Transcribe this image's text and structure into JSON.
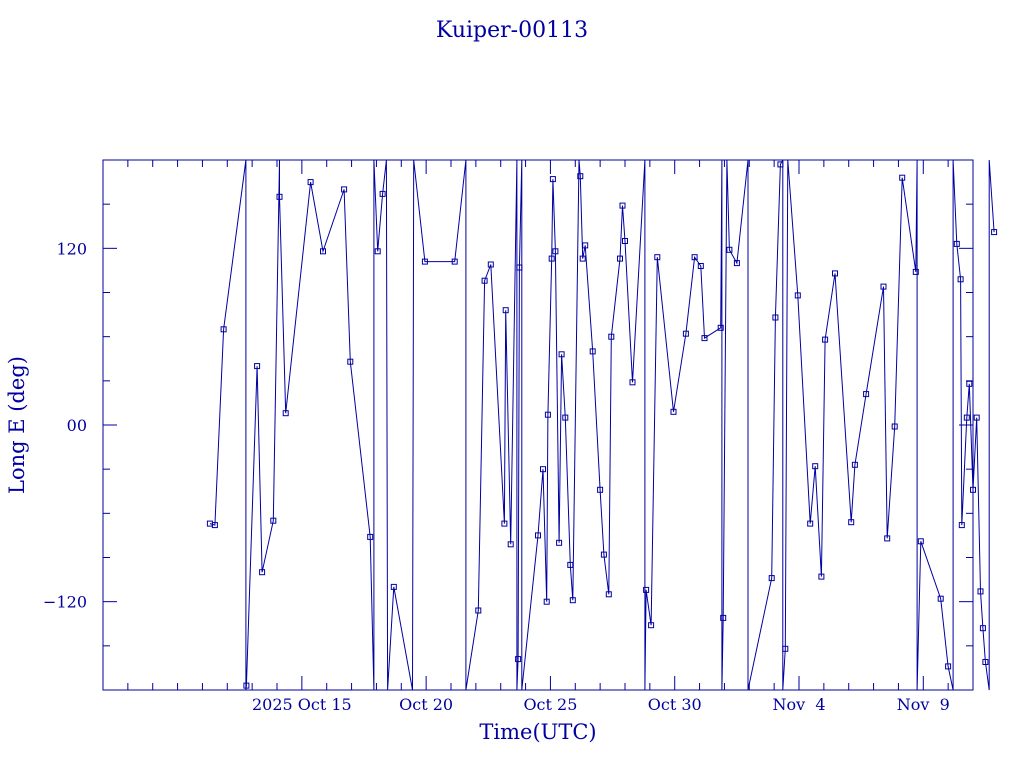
{
  "chart_data": {
    "type": "line",
    "title": "Kuiper-00113",
    "xlabel": "Time(UTC)",
    "ylabel": "Long E (deg)",
    "color": "#0000a0",
    "xlim": [
      7,
      42
    ],
    "ylim": [
      -180,
      180
    ],
    "x_ticks": [
      {
        "value": 15,
        "label": "2025 Oct 15"
      },
      {
        "value": 20,
        "label": "Oct 20"
      },
      {
        "value": 25,
        "label": "Oct 25"
      },
      {
        "value": 30,
        "label": "Oct 30"
      },
      {
        "value": 35,
        "label": "Nov  4"
      },
      {
        "value": 40,
        "label": "Nov  9"
      }
    ],
    "y_ticks": [
      {
        "value": -120,
        "label": "−120"
      },
      {
        "value": 0,
        "label": "00"
      },
      {
        "value": 120,
        "label": "120"
      }
    ],
    "series": [
      {
        "values": [
          [
            11.3,
            -67
          ],
          [
            11.5,
            -68
          ],
          [
            11.85,
            65
          ],
          [
            12.75,
            180
          ],
          [
            12.75,
            -180
          ],
          [
            12.77,
            -177
          ],
          [
            13.2,
            40
          ],
          [
            13.4,
            -100
          ],
          [
            13.85,
            -65
          ],
          [
            14.1,
            180
          ],
          [
            14.1,
            155
          ],
          [
            14.35,
            8
          ],
          [
            15.35,
            165
          ],
          [
            15.85,
            118
          ],
          [
            16.7,
            160
          ],
          [
            16.95,
            43
          ],
          [
            17.75,
            -76
          ],
          [
            17.9,
            -180
          ],
          [
            17.9,
            180
          ],
          [
            18.05,
            118
          ],
          [
            18.25,
            157
          ],
          [
            18.4,
            180
          ],
          [
            18.45,
            -180
          ],
          [
            18.7,
            -110
          ],
          [
            19.45,
            -180
          ],
          [
            19.5,
            180
          ],
          [
            19.95,
            111
          ],
          [
            21.15,
            111
          ],
          [
            21.6,
            180
          ],
          [
            21.6,
            -180
          ],
          [
            22.1,
            -126
          ],
          [
            22.35,
            98
          ],
          [
            22.6,
            109
          ],
          [
            23.15,
            -67
          ],
          [
            23.2,
            78
          ],
          [
            23.4,
            -81
          ],
          [
            23.65,
            180
          ],
          [
            23.65,
            -180
          ],
          [
            23.7,
            -159
          ],
          [
            23.75,
            107
          ],
          [
            23.85,
            180
          ],
          [
            23.85,
            -180
          ],
          [
            24.5,
            -75
          ],
          [
            24.7,
            -30
          ],
          [
            24.85,
            -120
          ],
          [
            24.9,
            7
          ],
          [
            25.05,
            113
          ],
          [
            25.1,
            167
          ],
          [
            25.2,
            118
          ],
          [
            25.35,
            -80
          ],
          [
            25.45,
            48
          ],
          [
            25.6,
            5
          ],
          [
            25.8,
            -95
          ],
          [
            25.9,
            -119
          ],
          [
            26.15,
            180
          ],
          [
            26.2,
            169
          ],
          [
            26.3,
            113
          ],
          [
            26.4,
            122
          ],
          [
            26.7,
            50
          ],
          [
            27.0,
            -44
          ],
          [
            27.15,
            -88
          ],
          [
            27.35,
            -115
          ],
          [
            27.45,
            60
          ],
          [
            27.8,
            113
          ],
          [
            27.9,
            149
          ],
          [
            28.0,
            125
          ],
          [
            28.3,
            29
          ],
          [
            28.8,
            180
          ],
          [
            28.8,
            -180
          ],
          [
            28.85,
            -112
          ],
          [
            29.05,
            -136
          ],
          [
            29.3,
            114
          ],
          [
            29.95,
            9
          ],
          [
            30.45,
            62
          ],
          [
            30.8,
            114
          ],
          [
            31.05,
            108
          ],
          [
            31.2,
            59
          ],
          [
            31.85,
            66
          ],
          [
            31.9,
            180
          ],
          [
            31.9,
            -180
          ],
          [
            31.95,
            -131
          ],
          [
            32.1,
            180
          ],
          [
            32.2,
            119
          ],
          [
            32.5,
            110
          ],
          [
            32.95,
            180
          ],
          [
            32.95,
            -180
          ],
          [
            33.9,
            -104
          ],
          [
            34.05,
            73
          ],
          [
            34.25,
            177
          ],
          [
            34.35,
            180
          ],
          [
            34.35,
            -180
          ],
          [
            34.45,
            -152
          ],
          [
            34.55,
            180
          ],
          [
            34.95,
            88
          ],
          [
            35.45,
            -67
          ],
          [
            35.65,
            -28
          ],
          [
            35.9,
            -103
          ],
          [
            36.05,
            58
          ],
          [
            36.45,
            103
          ],
          [
            37.1,
            -66
          ],
          [
            37.25,
            -27
          ],
          [
            37.7,
            21
          ],
          [
            38.4,
            94
          ],
          [
            38.55,
            -77
          ],
          [
            38.85,
            -1
          ],
          [
            39.15,
            168
          ],
          [
            39.7,
            104
          ],
          [
            39.75,
            180
          ],
          [
            39.75,
            -180
          ],
          [
            39.9,
            -79
          ],
          [
            40.7,
            -118
          ],
          [
            41.0,
            -164
          ],
          [
            41.2,
            -180
          ],
          [
            41.2,
            180
          ],
          [
            41.35,
            123
          ],
          [
            41.5,
            99
          ],
          [
            41.55,
            -68
          ],
          [
            41.75,
            5
          ],
          [
            41.85,
            28
          ],
          [
            42.0,
            -44
          ],
          [
            42.15,
            5
          ],
          [
            42.3,
            -113
          ],
          [
            42.4,
            -138
          ],
          [
            42.5,
            -161
          ],
          [
            42.65,
            -180
          ],
          [
            42.65,
            180
          ],
          [
            42.85,
            131
          ]
        ]
      }
    ]
  }
}
